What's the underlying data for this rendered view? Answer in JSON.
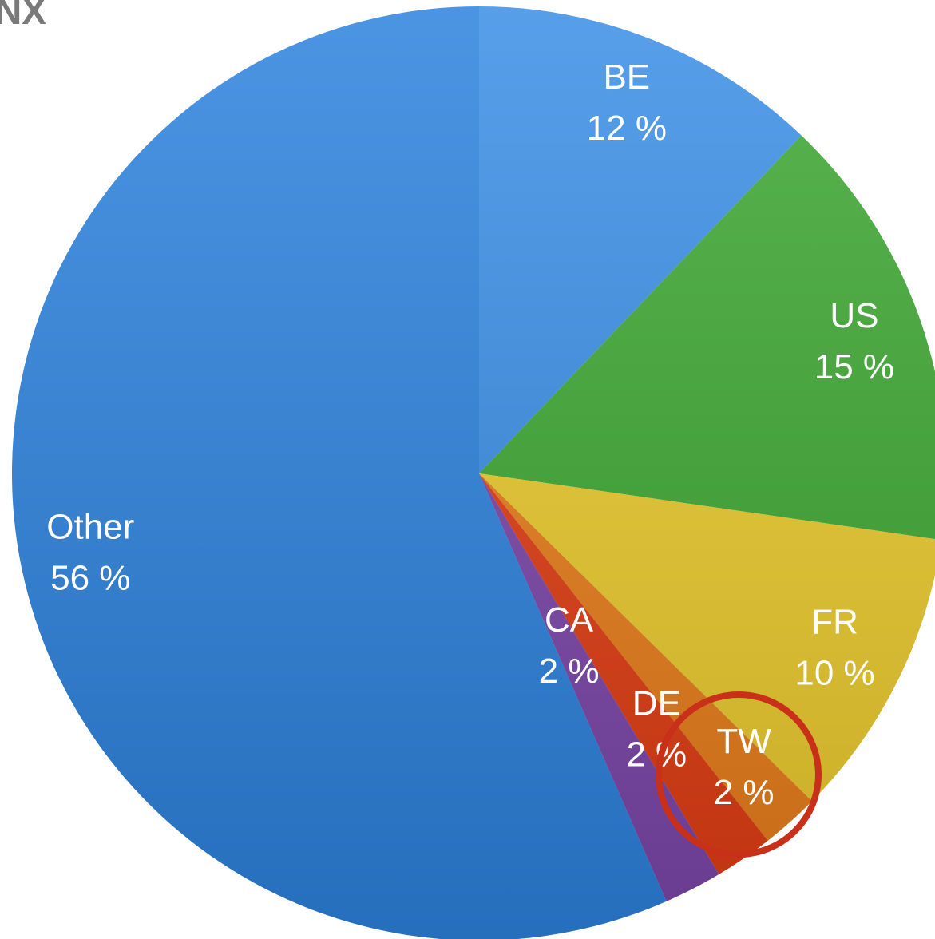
{
  "chart_data": {
    "type": "pie",
    "title": "NX",
    "categories": [
      "BE",
      "US",
      "FR",
      "TW",
      "DE",
      "CA",
      "Other"
    ],
    "values": [
      12,
      15,
      10,
      2,
      2,
      2,
      56
    ],
    "value_labels": [
      "12 %",
      "15 %",
      "10 %",
      "2 %",
      "2 %",
      "2 %",
      "56 %"
    ],
    "colors": [
      "#3a8ee6",
      "#3da832",
      "#eccb2c",
      "#ea7d1a",
      "#e23c12",
      "#7b45aa",
      "#2b82de"
    ]
  }
}
